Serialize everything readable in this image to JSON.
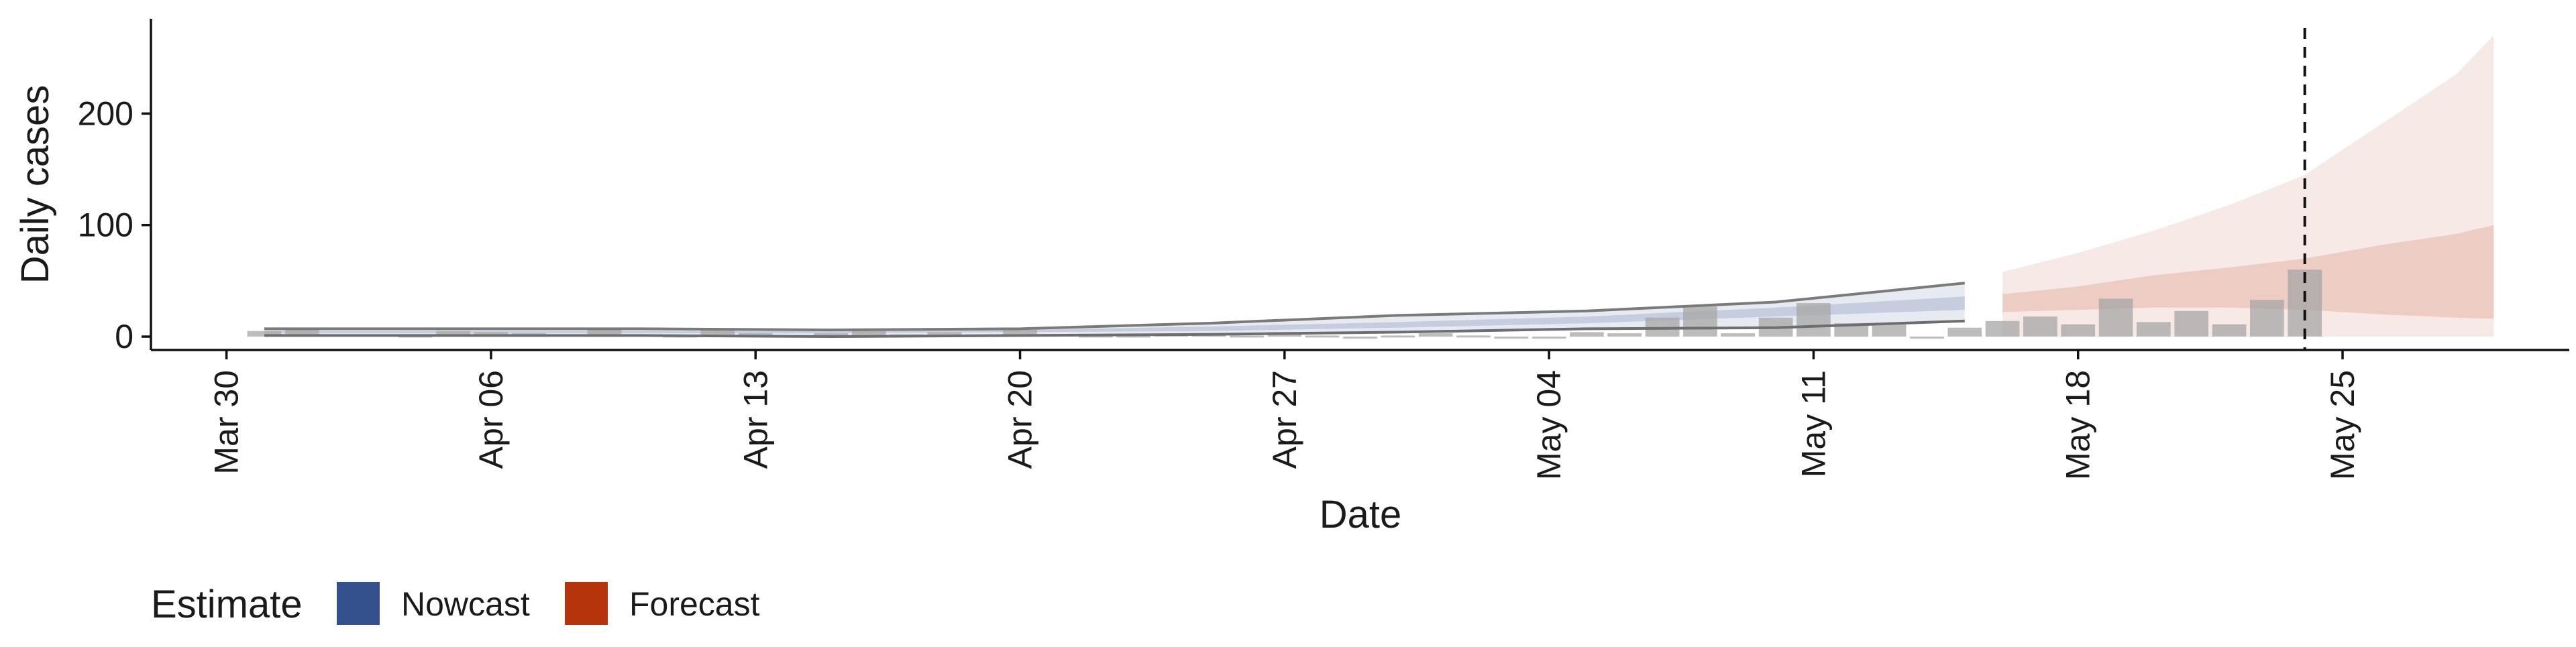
{
  "chart_data": {
    "type": "bar",
    "title": "",
    "xlabel": "Date",
    "ylabel": "Daily cases",
    "ylim": [
      -12,
      285
    ],
    "y_ticks": [
      0,
      100,
      200
    ],
    "x_ticks": [
      {
        "label": "Mar 30",
        "date": "2020-03-30"
      },
      {
        "label": "Apr 06",
        "date": "2020-04-06"
      },
      {
        "label": "Apr 13",
        "date": "2020-04-13"
      },
      {
        "label": "Apr 20",
        "date": "2020-04-20"
      },
      {
        "label": "Apr 27",
        "date": "2020-04-27"
      },
      {
        "label": "May 04",
        "date": "2020-05-04"
      },
      {
        "label": "May 11",
        "date": "2020-05-11"
      },
      {
        "label": "May 18",
        "date": "2020-05-18"
      },
      {
        "label": "May 25",
        "date": "2020-05-25"
      }
    ],
    "x_range": [
      "2020-03-28",
      "2020-05-31"
    ],
    "grid": false,
    "legend_position": "bottom-left",
    "legend": {
      "title": "Estimate",
      "items": [
        {
          "label": "Nowcast",
          "color": "#34508c"
        },
        {
          "label": "Forecast",
          "color": "#b5340c"
        }
      ]
    },
    "reference_line": {
      "date": "2020-05-24",
      "style": "dashed"
    },
    "bar_color": "#a6a6a6",
    "reported_cases": {
      "dates": [
        "2020-03-31",
        "2020-04-01",
        "2020-04-02",
        "2020-04-03",
        "2020-04-04",
        "2020-04-05",
        "2020-04-06",
        "2020-04-07",
        "2020-04-08",
        "2020-04-09",
        "2020-04-10",
        "2020-04-11",
        "2020-04-12",
        "2020-04-13",
        "2020-04-14",
        "2020-04-15",
        "2020-04-16",
        "2020-04-17",
        "2020-04-18",
        "2020-04-19",
        "2020-04-20",
        "2020-04-21",
        "2020-04-22",
        "2020-04-23",
        "2020-04-24",
        "2020-04-25",
        "2020-04-26",
        "2020-04-27",
        "2020-04-28",
        "2020-04-29",
        "2020-04-30",
        "2020-05-01",
        "2020-05-02",
        "2020-05-03",
        "2020-05-04",
        "2020-05-05",
        "2020-05-06",
        "2020-05-07",
        "2020-05-08",
        "2020-05-09",
        "2020-05-10",
        "2020-05-11",
        "2020-05-12",
        "2020-05-13",
        "2020-05-14",
        "2020-05-15",
        "2020-05-16",
        "2020-05-17",
        "2020-05-18",
        "2020-05-19",
        "2020-05-20",
        "2020-05-21",
        "2020-05-22",
        "2020-05-23",
        "2020-05-24"
      ],
      "values": [
        5,
        6,
        2,
        2,
        1,
        5,
        4,
        3,
        2,
        6,
        2,
        1,
        6,
        3,
        1,
        3,
        5,
        2,
        4,
        2,
        6,
        2,
        1,
        1,
        2,
        3,
        1,
        4,
        1,
        0,
        1,
        3,
        1,
        0,
        0,
        4,
        3,
        17,
        27,
        3,
        17,
        30,
        12,
        11,
        0,
        8,
        14,
        18,
        11,
        34,
        13,
        23,
        11,
        33,
        60
      ]
    },
    "series": [
      {
        "name": "Nowcast",
        "color": "#34508c",
        "dates": [
          "2020-03-31",
          "2020-04-05",
          "2020-04-10",
          "2020-04-15",
          "2020-04-20",
          "2020-04-25",
          "2020-04-30",
          "2020-05-05",
          "2020-05-10",
          "2020-05-15"
        ],
        "median": [
          4,
          4,
          4,
          4,
          5,
          7,
          11,
          15,
          22,
          30
        ],
        "lower_50": [
          3,
          3,
          3,
          3,
          4,
          5,
          8,
          12,
          18,
          24
        ],
        "upper_50": [
          5,
          5,
          5,
          5,
          6,
          9,
          13,
          18,
          26,
          36
        ],
        "lower_90": [
          1,
          1,
          1,
          0,
          1,
          2,
          4,
          7,
          8,
          14
        ],
        "upper_90": [
          7,
          7,
          7,
          6,
          7,
          12,
          19,
          23,
          31,
          48
        ]
      },
      {
        "name": "Forecast",
        "color": "#b5340c",
        "dates": [
          "2020-05-16",
          "2020-05-18",
          "2020-05-20",
          "2020-05-22",
          "2020-05-24",
          "2020-05-26",
          "2020-05-28",
          "2020-05-29"
        ],
        "lower_50": [
          22,
          24,
          26,
          26,
          24,
          20,
          17,
          16
        ],
        "upper_50": [
          38,
          45,
          55,
          62,
          70,
          82,
          92,
          100
        ],
        "lower_90": [
          0,
          0,
          0,
          0,
          0,
          0,
          0,
          0
        ],
        "upper_90": [
          58,
          75,
          95,
          118,
          145,
          190,
          235,
          270
        ]
      }
    ]
  }
}
